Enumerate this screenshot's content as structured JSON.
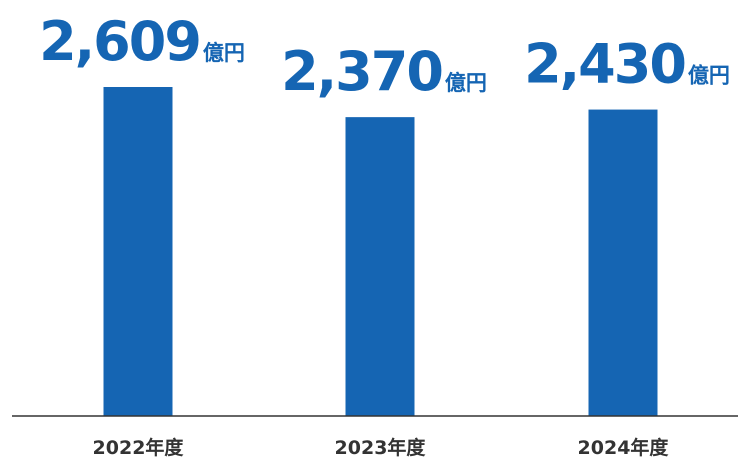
{
  "chart_data": {
    "type": "bar",
    "categories": [
      "2022年度",
      "2023年度",
      "2024年度"
    ],
    "values": [
      2609,
      2370,
      2430
    ],
    "value_labels": [
      "2,609",
      "2,370",
      "2,430"
    ],
    "unit": "億円",
    "bar_color": "#1565b3",
    "label_color": "#1565b3",
    "axis_color": "#333333",
    "ylim": [
      0,
      2609
    ],
    "grid": false,
    "legend": "none"
  }
}
